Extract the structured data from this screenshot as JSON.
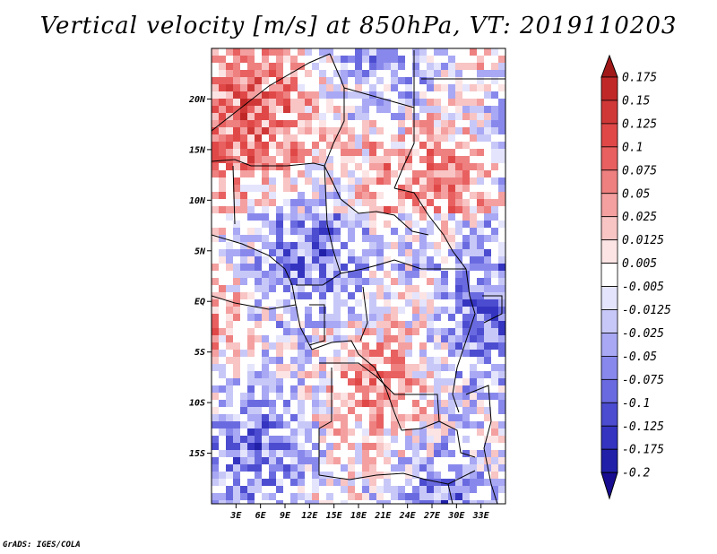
{
  "title": "Vertical velocity [m/s] at 850hPa, VT: 2019110203",
  "credit": "GrADS: IGES/COLA",
  "map": {
    "lon_range": [
      0,
      36
    ],
    "lat_range": [
      -20,
      25
    ]
  },
  "lat_ticks": [
    {
      "label": "20N",
      "lat": 20
    },
    {
      "label": "15N",
      "lat": 15
    },
    {
      "label": "10N",
      "lat": 10
    },
    {
      "label": "5N",
      "lat": 5
    },
    {
      "label": "EQ",
      "lat": 0
    },
    {
      "label": "5S",
      "lat": -5
    },
    {
      "label": "10S",
      "lat": -10
    },
    {
      "label": "15S",
      "lat": -15
    }
  ],
  "lon_ticks": [
    {
      "label": "3E",
      "lon": 3
    },
    {
      "label": "6E",
      "lon": 6
    },
    {
      "label": "9E",
      "lon": 9
    },
    {
      "label": "12E",
      "lon": 12
    },
    {
      "label": "15E",
      "lon": 15
    },
    {
      "label": "18E",
      "lon": 18
    },
    {
      "label": "21E",
      "lon": 21
    },
    {
      "label": "24E",
      "lon": 24
    },
    {
      "label": "27E",
      "lon": 27
    },
    {
      "label": "30E",
      "lon": 30
    },
    {
      "label": "33E",
      "lon": 33
    }
  ],
  "colorbar": {
    "labels": [
      "0.175",
      "0.15",
      "0.125",
      "0.1",
      "0.075",
      "0.05",
      "0.025",
      "0.0125",
      "0.005",
      "-0.005",
      "-0.0125",
      "-0.025",
      "-0.05",
      "-0.075",
      "-0.1",
      "-0.125",
      "-0.175",
      "-0.2"
    ],
    "colors": [
      "#a01818",
      "#c02828",
      "#d03838",
      "#e04848",
      "#e86060",
      "#ee8080",
      "#f4a0a0",
      "#f8c4c4",
      "#fce4e4",
      "#ffffff",
      "#e4e4fc",
      "#c8c8f8",
      "#a8a8f4",
      "#8888ec",
      "#6a6ae0",
      "#4c4cd0",
      "#3434c0",
      "#2020a8",
      "#180c90"
    ]
  }
}
